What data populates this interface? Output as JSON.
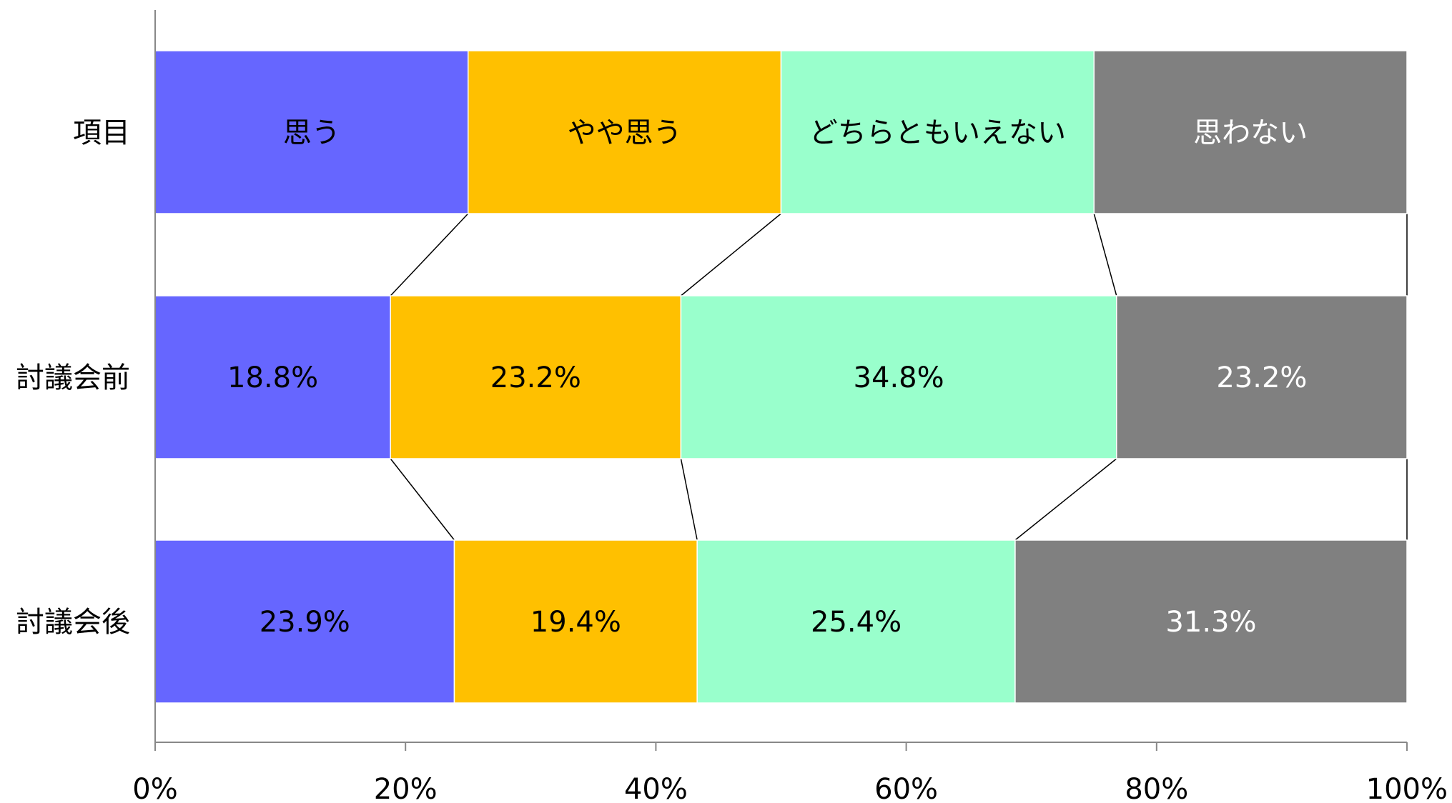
{
  "chart_data": {
    "type": "bar",
    "orientation": "horizontal",
    "stacked": "percent",
    "categories": [
      "項目",
      "討議会前",
      "討議会後"
    ],
    "series": [
      {
        "name": "思う",
        "color": "#6666ff",
        "text_color": "#000000",
        "values": [
          25,
          18.8,
          23.9
        ],
        "labels": [
          "思う",
          "18.8%",
          "23.9%"
        ]
      },
      {
        "name": "やや思う",
        "color": "#ffc000",
        "text_color": "#000000",
        "values": [
          25,
          23.2,
          19.4
        ],
        "labels": [
          "やや思う",
          "23.2%",
          "19.4%"
        ]
      },
      {
        "name": "どちらともいえない",
        "color": "#99ffcc",
        "text_color": "#000000",
        "values": [
          25,
          34.8,
          25.4
        ],
        "labels": [
          "どちらともいえない",
          "34.8%",
          "25.4%"
        ]
      },
      {
        "name": "思わない",
        "color": "#808080",
        "text_color": "#ffffff",
        "values": [
          25,
          23.2,
          31.3
        ],
        "labels": [
          "思わない",
          "23.2%",
          "31.3%"
        ]
      }
    ],
    "xlim": [
      0,
      100
    ],
    "x_ticks": [
      0,
      20,
      40,
      60,
      80,
      100
    ],
    "x_tick_labels": [
      "0%",
      "20%",
      "40%",
      "60%",
      "80%",
      "100%"
    ],
    "series_lines": true,
    "grid": false,
    "legend": "none",
    "title": "",
    "xlabel": "",
    "ylabel": ""
  }
}
